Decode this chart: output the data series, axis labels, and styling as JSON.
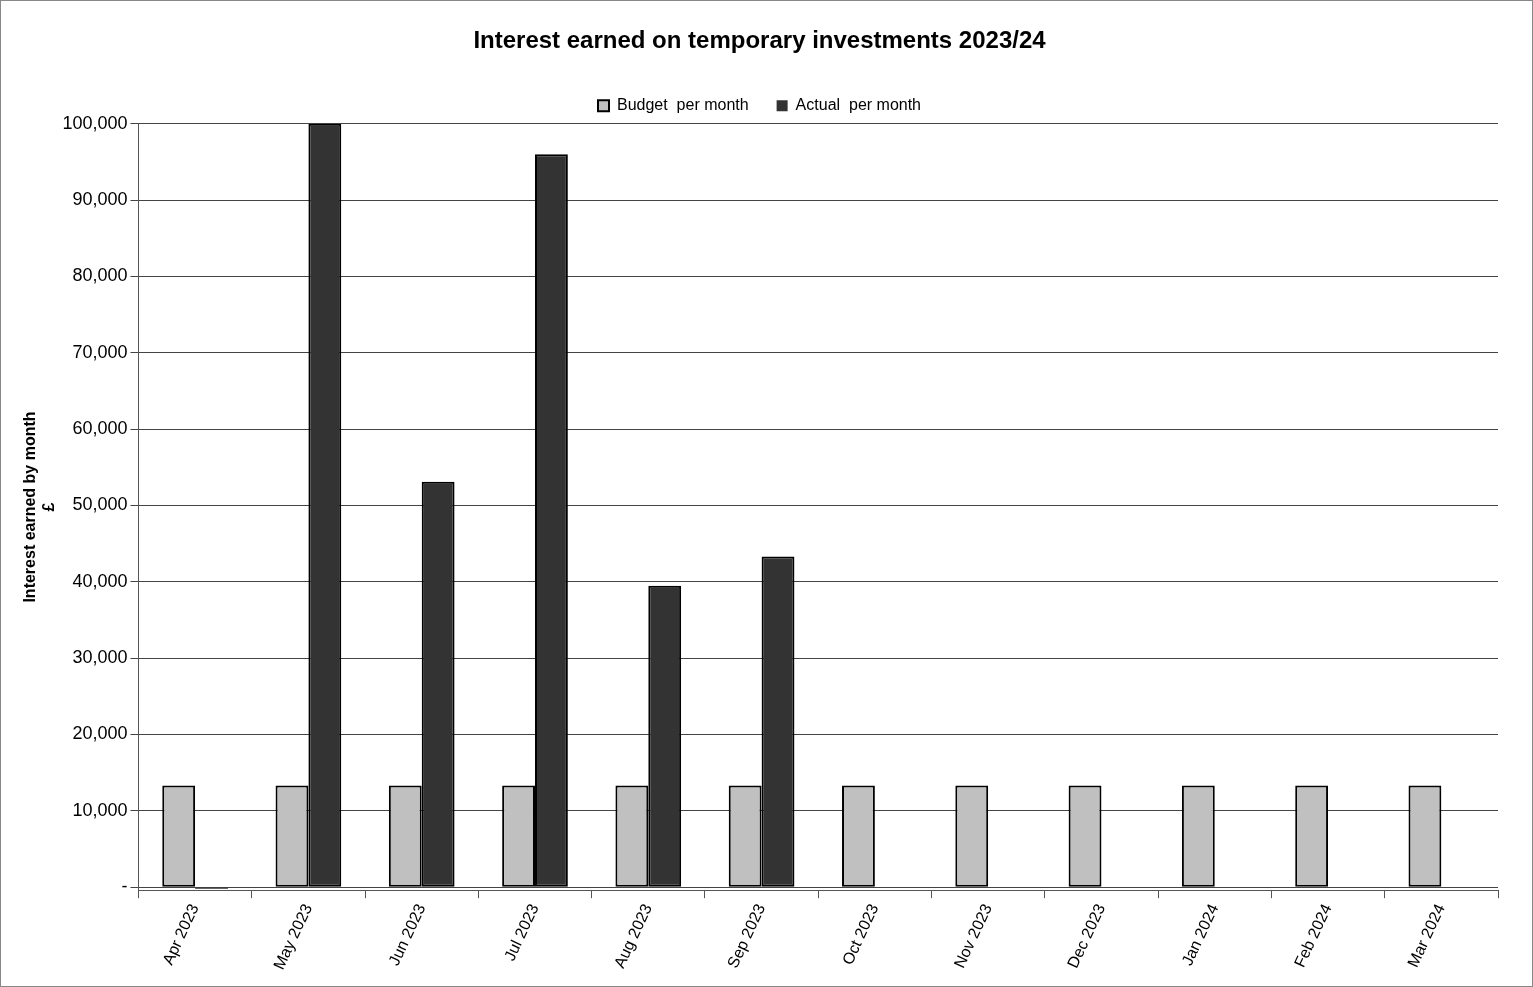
{
  "chart_data": {
    "type": "bar",
    "title": "Interest earned on temporary investments 2023/24",
    "ylabel": "Interest earned by month\n£",
    "categories": [
      "Apr 2023",
      "May 2023",
      "Jun 2023",
      "Jul 2023",
      "Aug 2023",
      "Sep 2023",
      "Oct 2023",
      "Nov 2023",
      "Dec 2023",
      "Jan 2024",
      "Feb 2024",
      "Mar 2024"
    ],
    "series": [
      {
        "name": "Budget  per month",
        "color": "#c0c0c0",
        "values": [
          13300,
          13300,
          13300,
          13300,
          13300,
          13300,
          13300,
          13300,
          13300,
          13300,
          13300,
          13300
        ]
      },
      {
        "name": "Actual  per month",
        "color": "#333333",
        "values": [
          -200,
          100000,
          53100,
          96000,
          39500,
          43300,
          null,
          null,
          null,
          null,
          null,
          null
        ]
      }
    ],
    "ylim": [
      -400,
      100000
    ],
    "yticks": [
      {
        "value": 0,
        "label": "-"
      },
      {
        "value": 10000,
        "label": "10,000"
      },
      {
        "value": 20000,
        "label": "20,000"
      },
      {
        "value": 30000,
        "label": "30,000"
      },
      {
        "value": 40000,
        "label": "40,000"
      },
      {
        "value": 50000,
        "label": "50,000"
      },
      {
        "value": 60000,
        "label": "60,000"
      },
      {
        "value": 70000,
        "label": "70,000"
      },
      {
        "value": 80000,
        "label": "80,000"
      },
      {
        "value": 90000,
        "label": "90,000"
      },
      {
        "value": 100000,
        "label": "100,000"
      }
    ],
    "grid": "y",
    "legend": "top"
  }
}
